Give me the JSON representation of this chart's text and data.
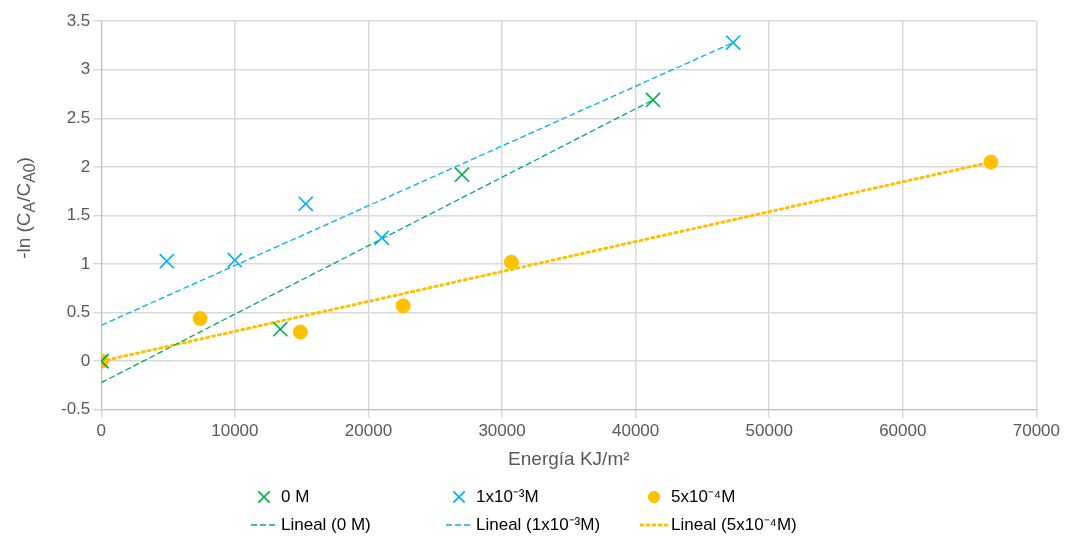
{
  "chart_data": {
    "type": "scatter",
    "xlabel": "Energía KJ/m²",
    "ylabel": "-ln (C$_{A}$/C$_{A0}$)",
    "xlim": [
      0,
      70000
    ],
    "xticks": [
      0,
      10000,
      20000,
      30000,
      40000,
      50000,
      60000,
      70000
    ],
    "ylim": [
      -0.5,
      3.5
    ],
    "yticks": [
      -0.5,
      0,
      0.5,
      1,
      1.5,
      2,
      2.5,
      3,
      3.5
    ],
    "grid": true,
    "legend": "bottom",
    "series": [
      {
        "name": "0 M",
        "type": "scatter",
        "marker": "cross",
        "color": "#00b050",
        "x": [
          0,
          13400,
          27000,
          41300
        ],
        "values": [
          0,
          0.33,
          1.92,
          2.69
        ]
      },
      {
        "name": "1x10⁻³M",
        "type": "scatter",
        "marker": "cross",
        "color": "#00b0f0",
        "x": [
          0,
          4900,
          10000,
          15300,
          21000,
          47300
        ],
        "values": [
          0,
          1.03,
          1.04,
          1.62,
          1.27,
          3.28
        ]
      },
      {
        "name": "5x10⁻⁴M",
        "type": "scatter",
        "marker": "circle",
        "color": "#ffc000",
        "x": [
          0,
          7400,
          14900,
          22600,
          30700,
          66600
        ],
        "values": [
          0,
          0.44,
          0.3,
          0.57,
          1.02,
          2.05
        ]
      },
      {
        "name": "Lineal (0 M)",
        "type": "line",
        "line_style": "dashed",
        "color": "#00b050",
        "x": [
          0,
          41300
        ],
        "values": [
          -0.22,
          2.69
        ]
      },
      {
        "name": "Lineal (1x10⁻³M)",
        "type": "line",
        "line_style": "dashed",
        "color": "#00b0f0",
        "x": [
          0,
          47300
        ],
        "values": [
          0.37,
          3.28
        ]
      },
      {
        "name": "Lineal (5x10⁻⁴M)",
        "type": "line",
        "line_style": "dotted",
        "color": "#ffc000",
        "x": [
          0,
          66600
        ],
        "values": [
          0,
          2.05
        ]
      }
    ]
  }
}
